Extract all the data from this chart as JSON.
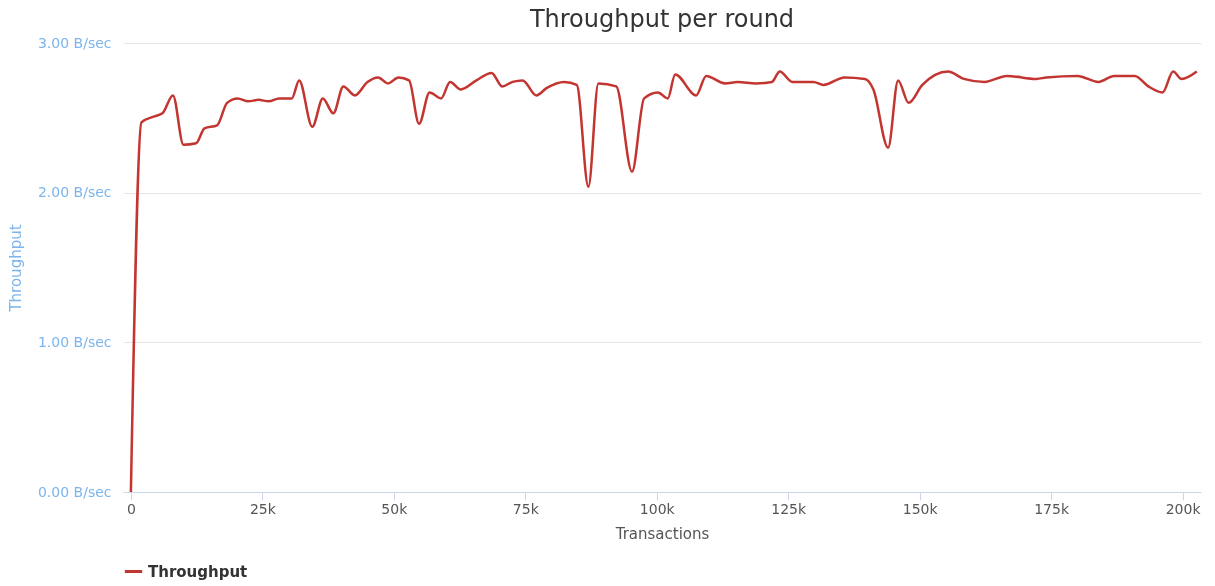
{
  "chart_data": {
    "type": "line",
    "title": "Throughput per round",
    "xlabel": "Transactions",
    "ylabel": "Throughput",
    "xlim": [
      -1500,
      203500
    ],
    "ylim": [
      0,
      3
    ],
    "xticks": [
      {
        "value": 0,
        "label": "0"
      },
      {
        "value": 25000,
        "label": "25k"
      },
      {
        "value": 50000,
        "label": "50k"
      },
      {
        "value": 75000,
        "label": "75k"
      },
      {
        "value": 100000,
        "label": "100k"
      },
      {
        "value": 125000,
        "label": "125k"
      },
      {
        "value": 150000,
        "label": "150k"
      },
      {
        "value": 175000,
        "label": "175k"
      },
      {
        "value": 200000,
        "label": "200k"
      }
    ],
    "yticks": [
      {
        "value": 0,
        "label": "0.00 B/sec"
      },
      {
        "value": 1,
        "label": "1.00 B/sec"
      },
      {
        "value": 2,
        "label": "2.00 B/sec"
      },
      {
        "value": 3,
        "label": "3.00 B/sec"
      }
    ],
    "grid": "y",
    "legend": "bottom",
    "marker": "none",
    "line_style": "solid",
    "x": [
      0,
      2000,
      4500,
      6000,
      8000,
      10000,
      12400,
      14000,
      16400,
      18300,
      20300,
      22300,
      24300,
      26200,
      28200,
      30600,
      32000,
      34500,
      36500,
      38500,
      40400,
      42600,
      45000,
      47000,
      48900,
      50900,
      52900,
      54800,
      56800,
      59000,
      60700,
      62700,
      65700,
      68600,
      70600,
      72600,
      74500,
      77100,
      79100,
      82400,
      84800,
      87000,
      88900,
      92300,
      95300,
      97600,
      100200,
      102100,
      103500,
      107500,
      109400,
      113000,
      115400,
      118900,
      121900,
      123400,
      125800,
      129800,
      131700,
      135700,
      139600,
      141200,
      144000,
      145900,
      147900,
      150500,
      155400,
      158400,
      162300,
      166600,
      172200,
      174100,
      180000,
      184000,
      187000,
      190900,
      193500,
      196200,
      198200,
      199800,
      202700
    ],
    "series": [
      {
        "name": "Throughput",
        "color": "#c23531",
        "values": [
          0,
          2.47,
          2.51,
          2.53,
          2.65,
          2.32,
          2.33,
          2.43,
          2.45,
          2.6,
          2.63,
          2.61,
          2.62,
          2.61,
          2.63,
          2.63,
          2.75,
          2.44,
          2.63,
          2.53,
          2.71,
          2.65,
          2.74,
          2.77,
          2.73,
          2.77,
          2.75,
          2.46,
          2.67,
          2.63,
          2.74,
          2.69,
          2.75,
          2.8,
          2.71,
          2.74,
          2.75,
          2.65,
          2.7,
          2.74,
          2.72,
          2.04,
          2.73,
          2.71,
          2.14,
          2.63,
          2.67,
          2.63,
          2.79,
          2.65,
          2.78,
          2.73,
          2.74,
          2.73,
          2.74,
          2.81,
          2.74,
          2.74,
          2.72,
          2.77,
          2.76,
          2.69,
          2.3,
          2.75,
          2.6,
          2.72,
          2.81,
          2.76,
          2.74,
          2.78,
          2.76,
          2.77,
          2.78,
          2.74,
          2.78,
          2.78,
          2.71,
          2.67,
          2.81,
          2.76,
          2.81
        ]
      }
    ]
  }
}
